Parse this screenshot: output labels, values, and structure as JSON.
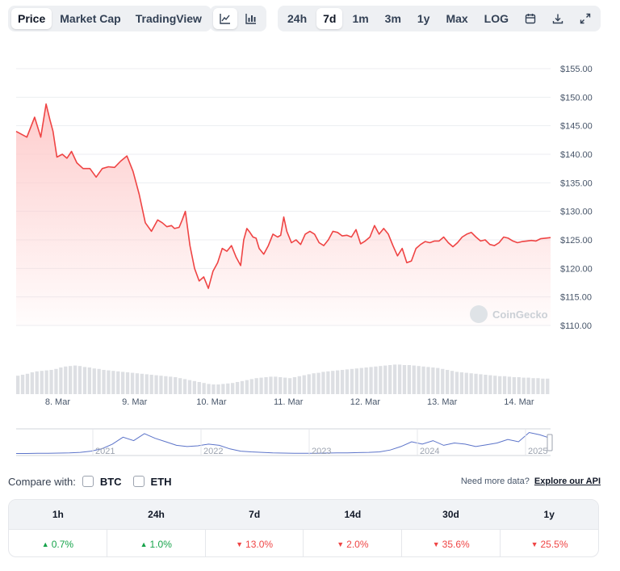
{
  "toolbar": {
    "view_tabs": [
      {
        "label": "Price",
        "active": true
      },
      {
        "label": "Market Cap",
        "active": false
      },
      {
        "label": "TradingView",
        "active": false
      }
    ],
    "chart_style_icons": [
      {
        "icon": "line-chart-icon",
        "active": true
      },
      {
        "icon": "candlestick-chart-icon",
        "active": false
      }
    ],
    "ranges": [
      {
        "label": "24h",
        "active": false
      },
      {
        "label": "7d",
        "active": true
      },
      {
        "label": "1m",
        "active": false
      },
      {
        "label": "3m",
        "active": false
      },
      {
        "label": "1y",
        "active": false
      },
      {
        "label": "Max",
        "active": false
      },
      {
        "label": "LOG",
        "active": false
      }
    ],
    "tool_icons": [
      "calendar-icon",
      "download-icon",
      "expand-icon"
    ]
  },
  "watermark": "CoinGecko",
  "colors": {
    "price_line": "#ef4444",
    "area_top": "#fecaca",
    "volume_bar": "#dddfe3",
    "navigator_line": "#5b73c9",
    "up": "#16a34a",
    "down": "#ef4444"
  },
  "chart_data": {
    "type": "area",
    "title": "",
    "ylabel": "",
    "y_tick_labels": [
      "$155.00",
      "$150.00",
      "$145.00",
      "$140.00",
      "$135.00",
      "$130.00",
      "$125.00",
      "$120.00",
      "$115.00",
      "$110.00"
    ],
    "ylim": [
      110,
      155
    ],
    "x_tick_labels": [
      "8. Mar",
      "9. Mar",
      "10. Mar",
      "11. Mar",
      "12. Mar",
      "13. Mar",
      "14. Mar"
    ],
    "xlim": [
      7.46,
      14.41
    ],
    "series": [
      {
        "x": [
          7.46,
          7.6,
          7.7,
          7.78,
          7.85,
          7.9,
          7.94,
          7.99,
          8.06,
          8.12,
          8.18,
          8.25,
          8.33,
          8.42,
          8.5,
          8.58,
          8.66,
          8.74,
          8.82,
          8.9,
          8.98,
          9.06,
          9.14,
          9.22,
          9.3,
          9.36,
          9.42,
          9.48,
          9.52,
          9.58,
          9.62,
          9.66,
          9.72,
          9.78,
          9.84,
          9.9,
          9.96,
          10.02,
          10.08,
          10.14,
          10.2,
          10.26,
          10.32,
          10.38,
          10.42,
          10.46,
          10.5,
          10.54,
          10.58,
          10.62,
          10.68,
          10.74,
          10.8,
          10.86,
          10.9,
          10.94,
          10.98,
          11.04,
          11.1,
          11.16,
          11.22,
          11.28,
          11.34,
          11.4,
          11.46,
          11.52,
          11.58,
          11.64,
          11.7,
          11.76,
          11.82,
          11.88,
          11.94,
          12.0,
          12.06,
          12.12,
          12.18,
          12.24,
          12.3,
          12.36,
          12.42,
          12.48,
          12.54,
          12.6,
          12.66,
          12.72,
          12.78,
          12.84,
          12.9,
          12.96,
          13.02,
          13.08,
          13.14,
          13.2,
          13.26,
          13.32,
          13.38,
          13.44,
          13.5,
          13.56,
          13.62,
          13.68,
          13.74,
          13.8,
          13.86,
          13.92,
          13.98,
          14.04,
          14.1,
          14.16,
          14.22,
          14.28,
          14.34,
          14.41
        ],
        "y": [
          144,
          143,
          146.5,
          143,
          148.8,
          146,
          144,
          139.5,
          140,
          139.3,
          140.5,
          138.5,
          137.5,
          137.5,
          136,
          137.5,
          137.8,
          137.7,
          138.8,
          139.7,
          137,
          133,
          128,
          126.5,
          128.5,
          128,
          127.3,
          127.5,
          127,
          127.2,
          128.5,
          130,
          124,
          120,
          117.8,
          118.5,
          116.5,
          119.5,
          121,
          123.5,
          123,
          124,
          122,
          120.5,
          125,
          127,
          126.3,
          125.5,
          125.3,
          123.5,
          122.5,
          124,
          126,
          125.5,
          125.8,
          129,
          126.5,
          124.5,
          125,
          124.2,
          126,
          126.5,
          126,
          124.5,
          124,
          125,
          126.5,
          126.3,
          125.7,
          125.8,
          125.5,
          126.8,
          124.3,
          124.8,
          125.5,
          127.5,
          126,
          127,
          126,
          124,
          122.2,
          123.5,
          121,
          121.3,
          123.5,
          124.2,
          124.7,
          124.5,
          124.8,
          124.8,
          125.5,
          124.5,
          123.8,
          124.5,
          125.5,
          126,
          126.3,
          125.5,
          124.8,
          125,
          124.2,
          124,
          124.5,
          125.5,
          125.3,
          124.8,
          124.5,
          124.7,
          124.8,
          124.9,
          124.8,
          125.2,
          125.3,
          125.4
        ]
      }
    ],
    "volume": [
      0.38,
      0.4,
      0.42,
      0.45,
      0.47,
      0.48,
      0.49,
      0.5,
      0.52,
      0.55,
      0.57,
      0.58,
      0.59,
      0.58,
      0.56,
      0.55,
      0.53,
      0.52,
      0.5,
      0.49,
      0.48,
      0.47,
      0.46,
      0.45,
      0.44,
      0.43,
      0.42,
      0.41,
      0.4,
      0.39,
      0.38,
      0.37,
      0.36,
      0.35,
      0.33,
      0.31,
      0.29,
      0.27,
      0.25,
      0.23,
      0.21,
      0.2,
      0.2,
      0.21,
      0.22,
      0.23,
      0.25,
      0.27,
      0.29,
      0.31,
      0.33,
      0.34,
      0.35,
      0.36,
      0.36,
      0.35,
      0.34,
      0.33,
      0.35,
      0.37,
      0.39,
      0.41,
      0.43,
      0.44,
      0.46,
      0.47,
      0.48,
      0.49,
      0.5,
      0.51,
      0.52,
      0.53,
      0.54,
      0.55,
      0.56,
      0.57,
      0.58,
      0.59,
      0.6,
      0.61,
      0.61,
      0.6,
      0.6,
      0.59,
      0.58,
      0.57,
      0.56,
      0.55,
      0.54,
      0.52,
      0.5,
      0.48,
      0.46,
      0.45,
      0.44,
      0.43,
      0.42,
      0.41,
      0.4,
      0.39,
      0.38,
      0.37,
      0.37,
      0.36,
      0.35,
      0.35,
      0.34,
      0.34,
      0.33,
      0.33,
      0.32,
      0.32
    ],
    "navigator": {
      "x_tick_labels": [
        "2021",
        "2022",
        "2023",
        "2024",
        "2025"
      ],
      "values": [
        0.05,
        0.05,
        0.06,
        0.06,
        0.07,
        0.08,
        0.1,
        0.15,
        0.25,
        0.45,
        0.75,
        0.6,
        0.9,
        0.7,
        0.55,
        0.4,
        0.35,
        0.38,
        0.45,
        0.4,
        0.25,
        0.15,
        0.12,
        0.1,
        0.08,
        0.07,
        0.06,
        0.06,
        0.06,
        0.07,
        0.08,
        0.08,
        0.09,
        0.1,
        0.12,
        0.2,
        0.35,
        0.55,
        0.45,
        0.6,
        0.4,
        0.5,
        0.45,
        0.35,
        0.42,
        0.5,
        0.65,
        0.55,
        0.95,
        0.85,
        0.7
      ]
    }
  },
  "compare": {
    "label": "Compare with:",
    "options": [
      "BTC",
      "ETH"
    ],
    "api_text": "Need more data?",
    "api_link": "Explore our API"
  },
  "performance": [
    {
      "period": "1h",
      "value": "0.7%",
      "dir": "up"
    },
    {
      "period": "24h",
      "value": "1.0%",
      "dir": "up"
    },
    {
      "period": "7d",
      "value": "13.0%",
      "dir": "down"
    },
    {
      "period": "14d",
      "value": "2.0%",
      "dir": "down"
    },
    {
      "period": "30d",
      "value": "35.6%",
      "dir": "down"
    },
    {
      "period": "1y",
      "value": "25.5%",
      "dir": "down"
    }
  ]
}
